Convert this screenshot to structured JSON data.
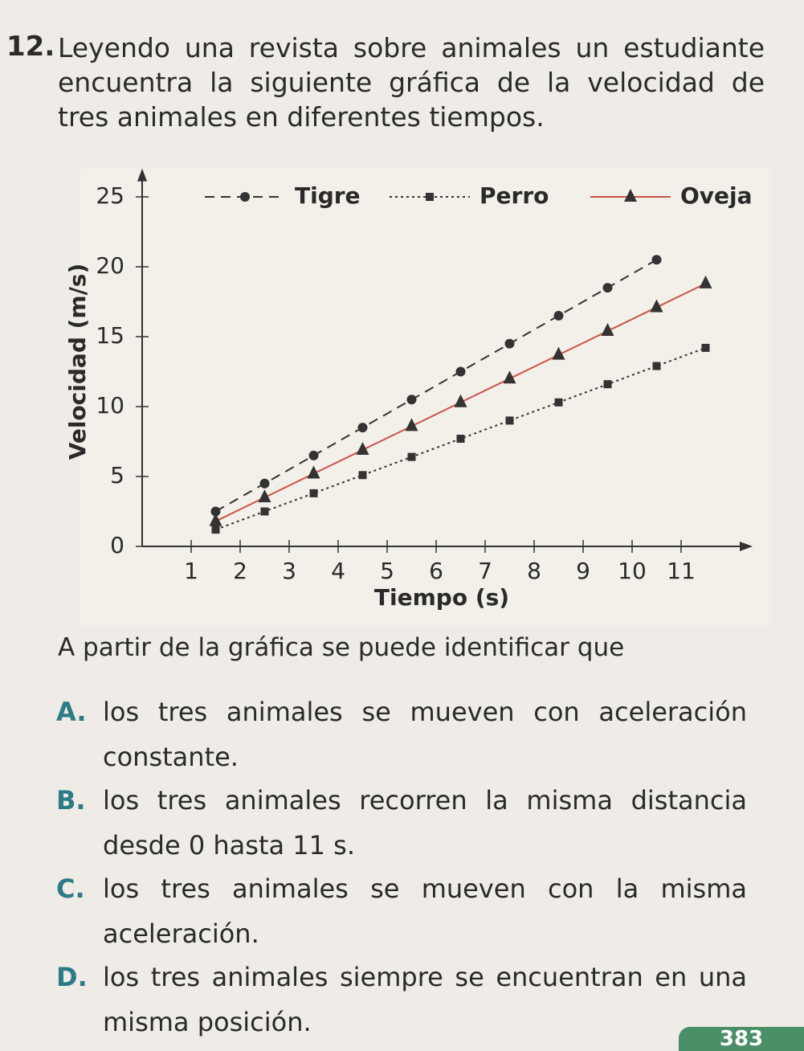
{
  "question": {
    "number": "12.",
    "text": "Leyendo una revista sobre animales un estudiante encuentra la siguiente gráfica de la velocidad de tres animales en diferentes tiempos."
  },
  "chart_data": {
    "type": "line",
    "xlabel": "Tiempo (s)",
    "ylabel": "Velocidad (m/s)",
    "xlim": [
      0,
      12
    ],
    "ylim": [
      0,
      26
    ],
    "xticks": [
      1,
      2,
      3,
      4,
      5,
      6,
      7,
      8,
      9,
      10,
      11
    ],
    "yticks": [
      0,
      5,
      10,
      15,
      20,
      25
    ],
    "series": [
      {
        "name": "Tigre",
        "color": "#333333",
        "style": "dashed",
        "marker": "circle",
        "x": [
          1.5,
          2.5,
          3.5,
          4.5,
          5.5,
          6.5,
          7.5,
          8.5,
          9.5,
          10.5
        ],
        "values": [
          2.5,
          4.5,
          6.5,
          8.5,
          10.5,
          12.5,
          14.5,
          16.5,
          18.5,
          20.5
        ]
      },
      {
        "name": "Perro",
        "color": "#333333",
        "style": "dotted",
        "marker": "square",
        "x": [
          1.5,
          2.5,
          3.5,
          4.5,
          5.5,
          6.5,
          7.5,
          8.5,
          9.5,
          10.5,
          11.5
        ],
        "values": [
          1.2,
          2.5,
          3.8,
          5.1,
          6.4,
          7.7,
          9,
          10.3,
          11.6,
          12.9,
          14.2
        ]
      },
      {
        "name": "Oveja",
        "color": "#c8554a",
        "style": "solid",
        "marker": "triangle",
        "x": [
          1.5,
          2.5,
          3.5,
          4.5,
          5.5,
          6.5,
          7.5,
          8.5,
          9.5,
          10.5,
          11.5
        ],
        "values": [
          1.8,
          3.5,
          5.2,
          6.9,
          8.6,
          10.3,
          12,
          13.7,
          15.4,
          17.1,
          18.8
        ]
      }
    ]
  },
  "prompt": "A partir de la gráfica se puede identificar que",
  "options": [
    {
      "letter": "A.",
      "text": "los tres animales se mueven con aceleración constante."
    },
    {
      "letter": "B.",
      "text": "los tres animales recorren la misma distancia desde 0 hasta 11 s."
    },
    {
      "letter": "C.",
      "text": "los tres animales se mueven con la misma aceleración."
    },
    {
      "letter": "D.",
      "text": "los tres animales siempre se encuentran en una misma posición."
    }
  ],
  "page_number": "383"
}
